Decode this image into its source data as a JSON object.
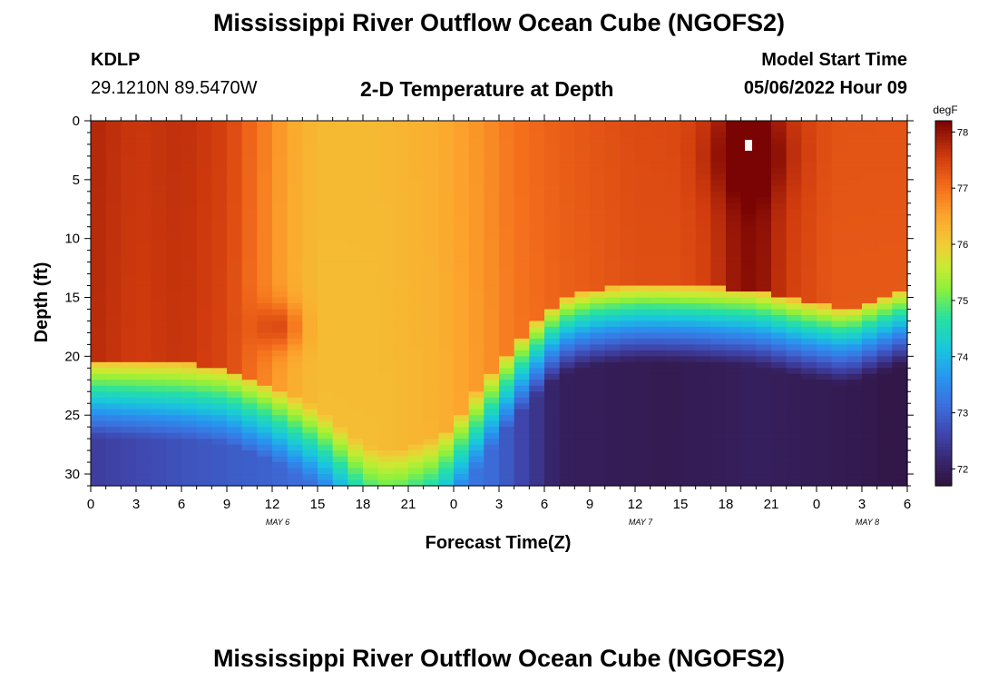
{
  "header": {
    "title": "Mississippi River Outflow Ocean Cube (NGOFS2)",
    "station_id": "KDLP",
    "coordinates": "29.1210N  89.5470W",
    "subtitle": "2-D Temperature at Depth",
    "model_start_label": "Model Start Time",
    "model_start_value": "05/06/2022 Hour 09"
  },
  "footer": {
    "title": "Mississippi River Outflow Ocean Cube (NGOFS2)"
  },
  "chart_data": {
    "type": "heatmap",
    "title": "2-D Temperature at Depth",
    "xlabel": "Forecast Time(Z)",
    "ylabel": "Depth (ft)",
    "x_unit": "hours since May 6 00Z",
    "xlim": [
      0,
      54
    ],
    "ylim": [
      0,
      31
    ],
    "y_inverted": true,
    "x_ticks": [
      {
        "value": 0,
        "label": "0"
      },
      {
        "value": 3,
        "label": "3"
      },
      {
        "value": 6,
        "label": "6"
      },
      {
        "value": 9,
        "label": "9"
      },
      {
        "value": 12,
        "label": "12"
      },
      {
        "value": 15,
        "label": "15"
      },
      {
        "value": 18,
        "label": "18"
      },
      {
        "value": 21,
        "label": "21"
      },
      {
        "value": 24,
        "label": "0"
      },
      {
        "value": 27,
        "label": "3"
      },
      {
        "value": 30,
        "label": "6"
      },
      {
        "value": 33,
        "label": "9"
      },
      {
        "value": 36,
        "label": "12"
      },
      {
        "value": 39,
        "label": "15"
      },
      {
        "value": 42,
        "label": "18"
      },
      {
        "value": 45,
        "label": "21"
      },
      {
        "value": 48,
        "label": "0"
      },
      {
        "value": 51,
        "label": "3"
      },
      {
        "value": 54,
        "label": "6"
      }
    ],
    "y_ticks": [
      0,
      5,
      10,
      15,
      20,
      25,
      30
    ],
    "date_labels": [
      {
        "value": 12,
        "label": "MAY 6"
      },
      {
        "value": 36,
        "label": "MAY 7"
      },
      {
        "value": 51,
        "label": "MAY 8"
      }
    ],
    "colorbar": {
      "unit": "degF",
      "min": 71.7,
      "max": 78.2,
      "ticks": [
        72,
        73,
        74,
        75,
        76,
        77,
        78
      ]
    },
    "grid": {
      "x_step_hours": 1,
      "y_step_ft": 0.5,
      "warm_threshold_depth_ft": [
        [
          0,
          20.5
        ],
        [
          6,
          20.6
        ],
        [
          9,
          21.0
        ],
        [
          12,
          22.5
        ],
        [
          15,
          24.5
        ],
        [
          18,
          27.5
        ],
        [
          20,
          28.2
        ],
        [
          23,
          27.0
        ],
        [
          25,
          24.0
        ],
        [
          27,
          20.5
        ],
        [
          29,
          17.5
        ],
        [
          31,
          15.2
        ],
        [
          33,
          14.4
        ],
        [
          36,
          14.0
        ],
        [
          40,
          14.1
        ],
        [
          44,
          14.4
        ],
        [
          47,
          15.3
        ],
        [
          50,
          16.0
        ],
        [
          54,
          14.2
        ]
      ],
      "warm_layer_profile_degF": [
        [
          0,
          77.8
        ],
        [
          3,
          77.6
        ],
        [
          6,
          77.7
        ],
        [
          9,
          77.5
        ],
        [
          11,
          77.0
        ],
        [
          13,
          76.5
        ],
        [
          15,
          76.25
        ],
        [
          19,
          76.25
        ],
        [
          23,
          76.4
        ],
        [
          26,
          76.7
        ],
        [
          28,
          77.0
        ],
        [
          31,
          77.2
        ],
        [
          36,
          77.4
        ],
        [
          39,
          77.4
        ],
        [
          41,
          77.6
        ],
        [
          42.5,
          78.0
        ],
        [
          44,
          78.2
        ],
        [
          46,
          77.6
        ],
        [
          49,
          77.3
        ],
        [
          54,
          77.3
        ]
      ],
      "bottom_temperature_degF": [
        [
          0,
          72.5
        ],
        [
          6,
          72.8
        ],
        [
          12,
          73.0
        ],
        [
          16,
          73.3
        ],
        [
          19,
          74.0
        ],
        [
          23,
          73.6
        ],
        [
          27,
          73.0
        ],
        [
          31,
          72.0
        ],
        [
          38,
          71.9
        ],
        [
          44,
          72.0
        ],
        [
          50,
          71.9
        ],
        [
          54,
          71.8
        ]
      ]
    }
  }
}
